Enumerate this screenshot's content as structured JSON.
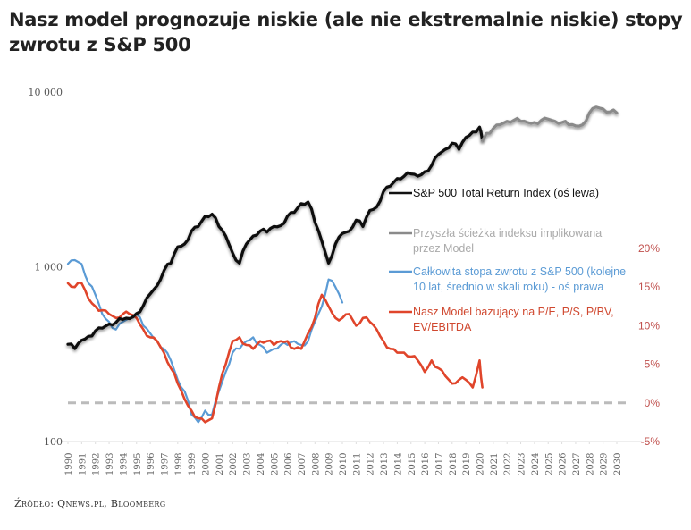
{
  "title": "Nasz model prognozuje niskie (ale nie ekstremalnie niskie) stopy zwrotu z S&P 500",
  "source": "Źródło: Qnews.pl, Bloomberg",
  "chart_data": {
    "type": "line",
    "title": "Nasz model prognozuje niskie (ale nie ekstremalnie niskie) stopy zwrotu z S&P 500",
    "xlabel": "",
    "ylabel": "",
    "x_range": [
      1990,
      2030
    ],
    "x_ticks": [
      "1990",
      "1991",
      "1992",
      "1993",
      "1994",
      "1995",
      "1996",
      "1997",
      "1998",
      "1999",
      "2000",
      "2001",
      "2002",
      "2003",
      "2004",
      "2005",
      "2006",
      "2007",
      "2008",
      "2009",
      "2010",
      "2011",
      "2012",
      "2013",
      "2014",
      "2015",
      "2016",
      "2017",
      "2018",
      "2019",
      "2020",
      "2021",
      "2022",
      "2023",
      "2024",
      "2025",
      "2026",
      "2027",
      "2028",
      "2029",
      "2030"
    ],
    "left_axis": {
      "scale": "log",
      "range": [
        100,
        10000
      ],
      "ticks": [
        100,
        1000,
        10000
      ],
      "tick_labels": [
        "100",
        "1 000",
        "10 000"
      ]
    },
    "right_axis": {
      "scale": "linear",
      "range": [
        -5,
        20
      ],
      "ticks": [
        -5,
        0,
        5,
        10,
        15,
        20
      ],
      "tick_labels": [
        "-5%",
        "0%",
        "5%",
        "10%",
        "15%",
        "20%"
      ]
    },
    "zero_line": {
      "axis": "right",
      "value": 0,
      "style": "dashed",
      "color": "#bbbbbb"
    },
    "grid": false,
    "legend_position": "right",
    "series": [
      {
        "name": "S&P 500 Total Return Index (oś lewa)",
        "axis": "left",
        "color": "#111111",
        "x": [
          1990,
          1990.5,
          1991,
          1991.5,
          1992,
          1992.5,
          1993,
          1993.5,
          1994,
          1994.5,
          1995,
          1995.5,
          1996,
          1996.5,
          1997,
          1997.5,
          1998,
          1998.5,
          1999,
          1999.5,
          2000,
          2000.5,
          2001,
          2001.5,
          2002,
          2002.5,
          2003,
          2003.5,
          2004,
          2004.5,
          2005,
          2005.5,
          2006,
          2006.5,
          2007,
          2007.5,
          2008,
          2008.5,
          2009,
          2009.5,
          2010,
          2010.5,
          2011,
          2011.5,
          2012,
          2012.5,
          2013,
          2013.5,
          2014,
          2014.5,
          2015,
          2015.5,
          2016,
          2016.5,
          2017,
          2017.5,
          2018,
          2018.5,
          2019,
          2019.5,
          2020,
          2020.2
        ],
        "values": [
          360,
          340,
          380,
          400,
          430,
          445,
          470,
          480,
          500,
          505,
          540,
          600,
          700,
          780,
          950,
          1050,
          1300,
          1350,
          1600,
          1700,
          1950,
          2000,
          1700,
          1500,
          1200,
          1050,
          1350,
          1500,
          1600,
          1580,
          1700,
          1720,
          1950,
          2050,
          2300,
          2350,
          1800,
          1400,
          1050,
          1350,
          1550,
          1600,
          1850,
          1700,
          2100,
          2200,
          2700,
          2900,
          3200,
          3300,
          3400,
          3300,
          3500,
          3800,
          4400,
          4700,
          5100,
          4700,
          5500,
          5900,
          6300,
          5300
        ]
      },
      {
        "name": "Przyszła ścieżka indeksu implikowana przez Model",
        "axis": "left",
        "color": "#8a8a8a",
        "x": [
          2020.2,
          2020.5,
          2021,
          2021.5,
          2022,
          2022.5,
          2023,
          2023.5,
          2024,
          2024.5,
          2025,
          2025.5,
          2026,
          2026.5,
          2027,
          2027.5,
          2028,
          2028.5,
          2029,
          2029.5,
          2030
        ],
        "values": [
          5300,
          5800,
          6200,
          6500,
          6800,
          6900,
          6800,
          6700,
          6700,
          6900,
          7000,
          6800,
          6700,
          6500,
          6400,
          6500,
          7600,
          8200,
          8000,
          7700,
          7600
        ]
      },
      {
        "name": "Całkowita stopa zwrotu z S&P 500 (kolejne 10 lat, średnio w skali roku) - oś prawa",
        "axis": "right",
        "color": "#5b9bd5",
        "x": [
          1990,
          1990.5,
          1991,
          1991.5,
          1992,
          1992.5,
          1993,
          1993.5,
          1994,
          1994.5,
          1995,
          1995.5,
          1996,
          1996.5,
          1997,
          1997.5,
          1998,
          1998.5,
          1999,
          1999.5,
          2000,
          2000.5,
          2001,
          2001.5,
          2002,
          2002.5,
          2003,
          2003.5,
          2004,
          2004.5,
          2005,
          2005.5,
          2006,
          2006.5,
          2007,
          2007.5,
          2008,
          2008.5,
          2009,
          2009.5,
          2010
        ],
        "values": [
          18.0,
          18.5,
          18.0,
          15.5,
          14.0,
          11.5,
          10.5,
          9.5,
          10.5,
          11.0,
          11.5,
          10.0,
          9.0,
          8.0,
          7.0,
          5.5,
          3.0,
          1.5,
          -1.5,
          -2.5,
          -1.0,
          -1.5,
          1.5,
          4.0,
          6.5,
          7.0,
          8.0,
          8.5,
          7.5,
          6.5,
          7.0,
          7.5,
          7.5,
          8.0,
          7.5,
          8.0,
          10.5,
          12.5,
          16.0,
          15.0,
          13.0
        ]
      },
      {
        "name": "Nasz Model bazujący na P/E, P/S, P/BV, EV/EBITDA",
        "axis": "right",
        "color": "#e0452b",
        "x": [
          1990,
          1990.5,
          1991,
          1991.5,
          1992,
          1992.5,
          1993,
          1993.5,
          1994,
          1994.5,
          1995,
          1995.5,
          1996,
          1996.5,
          1997,
          1997.5,
          1998,
          1998.5,
          1999,
          1999.5,
          2000,
          2000.5,
          2001,
          2001.5,
          2002,
          2002.5,
          2003,
          2003.5,
          2004,
          2004.5,
          2005,
          2005.5,
          2006,
          2006.5,
          2007,
          2007.5,
          2008,
          2008.5,
          2009,
          2009.5,
          2010,
          2010.5,
          2011,
          2011.5,
          2012,
          2012.5,
          2013,
          2013.5,
          2014,
          2014.5,
          2015,
          2015.5,
          2016,
          2016.5,
          2017,
          2017.5,
          2018,
          2018.5,
          2019,
          2019.5,
          2020,
          2020.2
        ],
        "values": [
          15.5,
          15.0,
          15.5,
          13.5,
          12.5,
          12.0,
          11.5,
          11.0,
          11.5,
          11.5,
          11.0,
          9.5,
          8.5,
          8.0,
          6.5,
          4.5,
          2.5,
          0.5,
          -1.0,
          -2.0,
          -2.5,
          -2.0,
          2.0,
          5.0,
          8.0,
          8.5,
          7.5,
          7.0,
          8.0,
          8.0,
          7.5,
          8.0,
          8.0,
          7.0,
          7.0,
          9.0,
          11.0,
          14.0,
          12.5,
          11.0,
          11.0,
          11.5,
          10.0,
          11.0,
          10.5,
          9.5,
          8.0,
          7.0,
          6.5,
          6.5,
          6.0,
          5.5,
          4.0,
          5.5,
          4.5,
          3.5,
          2.5,
          3.0,
          3.0,
          2.0,
          5.5,
          2.0
        ]
      }
    ]
  }
}
